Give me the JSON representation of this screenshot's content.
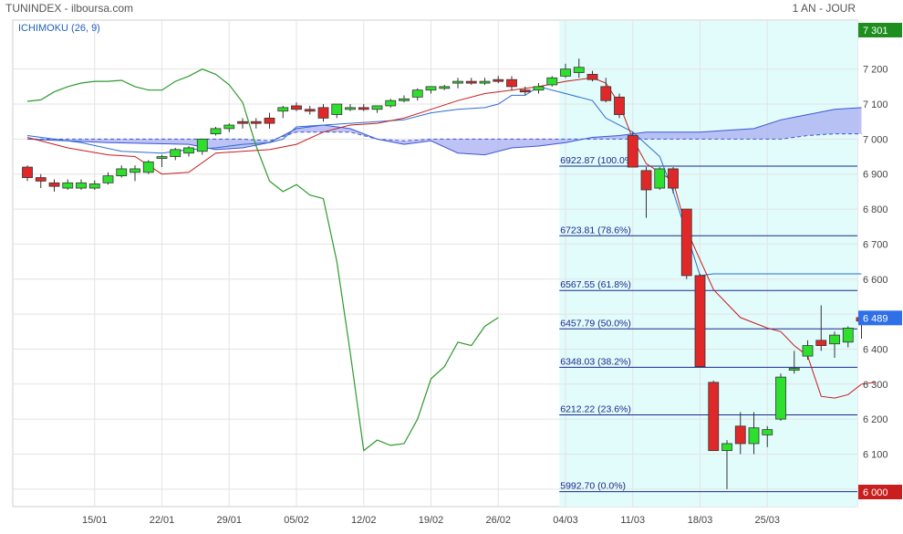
{
  "header": {
    "title": "TUNINDEX - ilboursa.com",
    "period": "1 AN - JOUR"
  },
  "indicator_label": "ICHIMOKU (26, 9)",
  "chart_data": {
    "type": "candlestick",
    "title": "TUNINDEX - ilboursa.com",
    "ylim": [
      5950,
      7340
    ],
    "grid": true,
    "y_ticks": [
      6000,
      6100,
      6200,
      6300,
      6400,
      6500,
      6600,
      6700,
      6800,
      6900,
      7000,
      7100,
      7200
    ],
    "y_tick_labels": [
      "6 000",
      "6 100",
      "6 200",
      "6 300",
      "6 400",
      "6 500",
      "6 600",
      "6 700",
      "6 800",
      "6 900",
      "7 000",
      "7 100",
      "7 200"
    ],
    "x_ticks": [
      {
        "label": "15/01",
        "i": 5
      },
      {
        "label": "22/01",
        "i": 10
      },
      {
        "label": "29/01",
        "i": 15
      },
      {
        "label": "05/02",
        "i": 20
      },
      {
        "label": "12/02",
        "i": 25
      },
      {
        "label": "19/02",
        "i": 30
      },
      {
        "label": "26/02",
        "i": 35
      },
      {
        "label": "04/03",
        "i": 40
      },
      {
        "label": "11/03",
        "i": 45
      },
      {
        "label": "18/03",
        "i": 50
      },
      {
        "label": "25/03",
        "i": 55
      }
    ],
    "ohlc": [
      [
        6920,
        6925,
        6880,
        6890
      ],
      [
        6890,
        6900,
        6860,
        6880
      ],
      [
        6875,
        6885,
        6850,
        6865
      ],
      [
        6860,
        6885,
        6855,
        6875
      ],
      [
        6860,
        6885,
        6855,
        6875
      ],
      [
        6860,
        6882,
        6855,
        6872
      ],
      [
        6875,
        6905,
        6870,
        6895
      ],
      [
        6895,
        6925,
        6890,
        6915
      ],
      [
        6905,
        6925,
        6880,
        6915
      ],
      [
        6905,
        6940,
        6900,
        6935
      ],
      [
        6945,
        6955,
        6920,
        6950
      ],
      [
        6950,
        6975,
        6940,
        6970
      ],
      [
        6960,
        6980,
        6950,
        6975
      ],
      [
        6965,
        7000,
        6955,
        7000
      ],
      [
        7015,
        7035,
        7010,
        7030
      ],
      [
        7030,
        7045,
        7020,
        7040
      ],
      [
        7050,
        7060,
        7030,
        7045
      ],
      [
        7050,
        7060,
        7030,
        7045
      ],
      [
        7060,
        7075,
        7030,
        7045
      ],
      [
        7080,
        7095,
        7060,
        7090
      ],
      [
        7095,
        7105,
        7080,
        7085
      ],
      [
        7085,
        7095,
        7070,
        7080
      ],
      [
        7090,
        7100,
        7050,
        7060
      ],
      [
        7070,
        7100,
        7060,
        7100
      ],
      [
        7090,
        7100,
        7080,
        7090
      ],
      [
        7090,
        7100,
        7080,
        7085
      ],
      [
        7085,
        7095,
        7075,
        7095
      ],
      [
        7095,
        7115,
        7090,
        7110
      ],
      [
        7110,
        7125,
        7105,
        7115
      ],
      [
        7120,
        7145,
        7110,
        7140
      ],
      [
        7140,
        7150,
        7130,
        7150
      ],
      [
        7150,
        7155,
        7140,
        7150
      ],
      [
        7160,
        7175,
        7145,
        7165
      ],
      [
        7165,
        7175,
        7155,
        7160
      ],
      [
        7165,
        7175,
        7155,
        7165
      ],
      [
        7170,
        7180,
        7160,
        7165
      ],
      [
        7170,
        7180,
        7140,
        7150
      ],
      [
        7140,
        7150,
        7125,
        7135
      ],
      [
        7140,
        7160,
        7130,
        7150
      ],
      [
        7155,
        7180,
        7150,
        7175
      ],
      [
        7180,
        7215,
        7175,
        7200
      ],
      [
        7190,
        7230,
        7175,
        7205
      ],
      [
        7185,
        7195,
        7165,
        7170
      ],
      [
        7150,
        7175,
        7105,
        7110
      ],
      [
        7120,
        7130,
        7060,
        7070
      ],
      [
        7010,
        7020,
        6920,
        6920
      ],
      [
        6910,
        6920,
        6775,
        6855
      ],
      [
        6860,
        6920,
        6855,
        6915
      ],
      [
        6915,
        6920,
        6845,
        6860
      ],
      [
        6800,
        6800,
        6600,
        6610
      ],
      [
        6610,
        6615,
        6350,
        6350
      ],
      [
        6305,
        6310,
        6110,
        6110
      ],
      [
        6110,
        6140,
        6000,
        6130
      ],
      [
        6180,
        6220,
        6100,
        6130
      ],
      [
        6130,
        6220,
        6100,
        6175
      ],
      [
        6155,
        6180,
        6120,
        6170
      ],
      [
        6200,
        6330,
        6195,
        6320
      ],
      [
        6340,
        6395,
        6330,
        6345
      ],
      [
        6380,
        6425,
        6370,
        6410
      ],
      [
        6425,
        6525,
        6395,
        6410
      ],
      [
        6415,
        6450,
        6375,
        6440
      ],
      [
        6420,
        6465,
        6405,
        6460
      ],
      [
        6490,
        6500,
        6430,
        6480
      ],
      [
        6495,
        6505,
        6475,
        6489
      ]
    ],
    "last_price": "6 489",
    "period_high": "7 301",
    "period_low": "6 000",
    "fibonacci": [
      {
        "label": "6922.87  (100.0%)",
        "value": 6922.87
      },
      {
        "label": "6723.81  (78.6%)",
        "value": 6723.81
      },
      {
        "label": "6567.55  (61.8%)",
        "value": 6567.55
      },
      {
        "label": "6457.79  (50.0%)",
        "value": 6457.79
      },
      {
        "label": "6348.03  (38.2%)",
        "value": 6348.03
      },
      {
        "label": "6212.22  (23.6%)",
        "value": 6212.22
      },
      {
        "label": "5992.70  (0.0%)",
        "value": 5992.7
      }
    ],
    "fib_zone_start_index": 39,
    "ichimoku": {
      "tenkan": [
        [
          0,
          7005
        ],
        [
          3,
          6975
        ],
        [
          6,
          6955
        ],
        [
          8,
          6950
        ],
        [
          10,
          6900
        ],
        [
          12,
          6905
        ],
        [
          14,
          6960
        ],
        [
          16,
          6965
        ],
        [
          18,
          6970
        ],
        [
          20,
          6985
        ],
        [
          22,
          7020
        ],
        [
          24,
          7040
        ],
        [
          26,
          7045
        ],
        [
          28,
          7060
        ],
        [
          30,
          7085
        ],
        [
          32,
          7110
        ],
        [
          34,
          7130
        ],
        [
          36,
          7140
        ],
        [
          38,
          7150
        ],
        [
          40,
          7165
        ],
        [
          42,
          7175
        ],
        [
          43,
          7160
        ],
        [
          44,
          7100
        ],
        [
          45,
          7000
        ],
        [
          46,
          6930
        ],
        [
          48,
          6880
        ],
        [
          49,
          6740
        ],
        [
          51,
          6570
        ],
        [
          53,
          6490
        ],
        [
          55,
          6460
        ],
        [
          56,
          6450
        ],
        [
          57,
          6410
        ],
        [
          58,
          6380
        ],
        [
          59,
          6265
        ],
        [
          60,
          6260
        ],
        [
          61,
          6270
        ],
        [
          62,
          6300
        ],
        [
          63,
          6305
        ]
      ],
      "kijun": [
        [
          0,
          7010
        ],
        [
          4,
          6990
        ],
        [
          7,
          6965
        ],
        [
          10,
          6960
        ],
        [
          12,
          6970
        ],
        [
          14,
          6975
        ],
        [
          16,
          6985
        ],
        [
          18,
          6990
        ],
        [
          19,
          7000
        ],
        [
          20,
          7035
        ],
        [
          22,
          7040
        ],
        [
          24,
          7045
        ],
        [
          26,
          7050
        ],
        [
          28,
          7055
        ],
        [
          30,
          7075
        ],
        [
          32,
          7085
        ],
        [
          34,
          7090
        ],
        [
          35,
          7100
        ],
        [
          36,
          7125
        ],
        [
          37,
          7125
        ],
        [
          38,
          7150
        ],
        [
          40,
          7130
        ],
        [
          42,
          7110
        ],
        [
          43,
          7060
        ],
        [
          45,
          7020
        ],
        [
          47,
          6950
        ],
        [
          48,
          6850
        ],
        [
          49,
          6730
        ],
        [
          50,
          6610
        ],
        [
          51,
          6615
        ],
        [
          62,
          6615
        ]
      ],
      "senkou_a": [
        [
          0,
          7000
        ],
        [
          6,
          6990
        ],
        [
          12,
          6985
        ],
        [
          14,
          6970
        ],
        [
          16,
          6975
        ],
        [
          18,
          6990
        ],
        [
          20,
          7030
        ],
        [
          22,
          7040
        ],
        [
          24,
          7030
        ],
        [
          26,
          7000
        ],
        [
          28,
          6985
        ],
        [
          30,
          6995
        ],
        [
          32,
          6960
        ],
        [
          34,
          6955
        ],
        [
          36,
          6975
        ],
        [
          38,
          6980
        ],
        [
          40,
          6990
        ],
        [
          42,
          7005
        ],
        [
          44,
          7010
        ],
        [
          46,
          7020
        ],
        [
          48,
          7020
        ],
        [
          50,
          7020
        ],
        [
          52,
          7025
        ],
        [
          54,
          7030
        ],
        [
          56,
          7055
        ],
        [
          58,
          7070
        ],
        [
          60,
          7085
        ],
        [
          62,
          7090
        ]
      ],
      "senkou_b": [
        [
          0,
          7000
        ],
        [
          6,
          7000
        ],
        [
          12,
          7000
        ],
        [
          14,
          7000
        ],
        [
          16,
          7000
        ],
        [
          18,
          6995
        ],
        [
          20,
          7020
        ],
        [
          22,
          7020
        ],
        [
          24,
          7020
        ],
        [
          26,
          7000
        ],
        [
          28,
          6995
        ],
        [
          30,
          7000
        ],
        [
          32,
          7000
        ],
        [
          34,
          7000
        ],
        [
          36,
          7000
        ],
        [
          38,
          7000
        ],
        [
          40,
          7000
        ],
        [
          42,
          7000
        ],
        [
          44,
          7000
        ],
        [
          46,
          7000
        ],
        [
          48,
          7000
        ],
        [
          50,
          7000
        ],
        [
          52,
          7000
        ],
        [
          54,
          7000
        ],
        [
          56,
          7000
        ],
        [
          58,
          7010
        ],
        [
          60,
          7015
        ],
        [
          62,
          7015
        ]
      ],
      "chikou": [
        [
          0,
          7108
        ],
        [
          1,
          7112
        ],
        [
          2,
          7135
        ],
        [
          3,
          7150
        ],
        [
          4,
          7160
        ],
        [
          5,
          7165
        ],
        [
          6,
          7165
        ],
        [
          7,
          7168
        ],
        [
          8,
          7150
        ],
        [
          9,
          7140
        ],
        [
          10,
          7140
        ],
        [
          11,
          7165
        ],
        [
          12,
          7180
        ],
        [
          13,
          7200
        ],
        [
          14,
          7185
        ],
        [
          15,
          7155
        ],
        [
          16,
          7105
        ],
        [
          17,
          6980
        ],
        [
          18,
          6880
        ],
        [
          19,
          6850
        ],
        [
          20,
          6870
        ],
        [
          21,
          6840
        ],
        [
          22,
          6830
        ],
        [
          23,
          6650
        ],
        [
          24,
          6390
        ],
        [
          25,
          6110
        ],
        [
          26,
          6140
        ],
        [
          27,
          6125
        ],
        [
          28,
          6130
        ],
        [
          29,
          6200
        ],
        [
          30,
          6315
        ],
        [
          31,
          6350
        ],
        [
          32,
          6420
        ],
        [
          33,
          6410
        ],
        [
          34,
          6465
        ],
        [
          35,
          6490
        ]
      ]
    }
  }
}
